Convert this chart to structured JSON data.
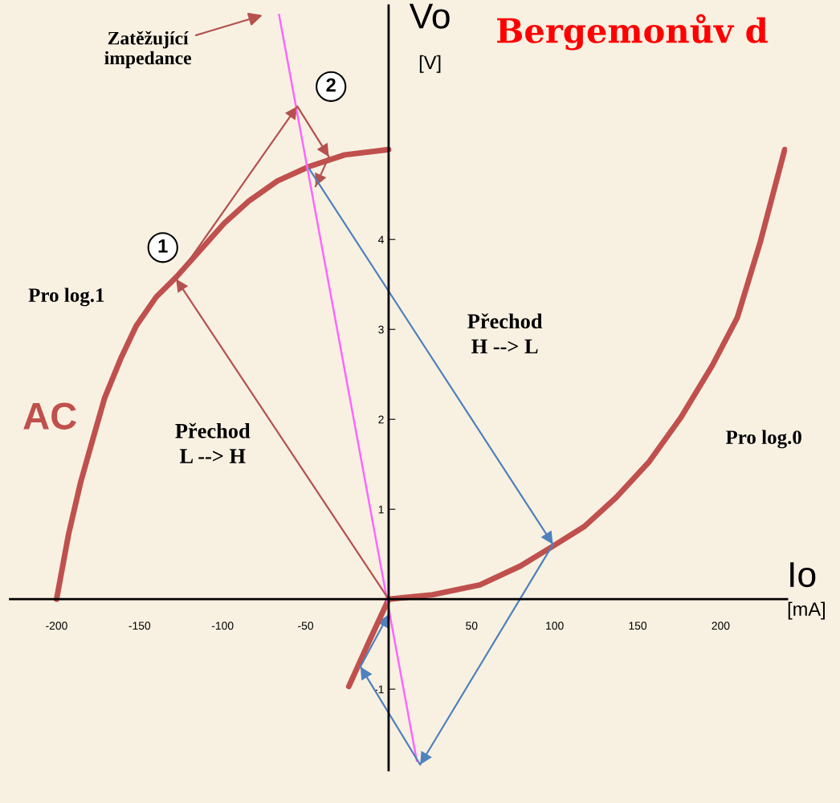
{
  "chart_data": {
    "type": "line",
    "title": "Bergemonův d",
    "xlabel": "Io\n[mA]",
    "ylabel": "Vo\n[V]",
    "xlim": [
      -228,
      240
    ],
    "ylim": [
      -1.9,
      6.6
    ],
    "xticks": [
      -200,
      -150,
      -100,
      -50,
      50,
      100,
      150,
      200
    ],
    "yticks": [
      -1,
      1,
      2,
      3,
      4
    ],
    "grid": false,
    "marker": "none",
    "line_style": "solid",
    "series": [
      {
        "color": "#c0504d",
        "x": [
          -200,
          -192.8,
          -185.5,
          -178,
          -171,
          -161,
          -152,
          -140,
          -128,
          -113,
          -99,
          -84,
          -67,
          -48,
          -26.5,
          0
        ],
        "values": [
          0,
          0.72,
          1.3,
          1.79,
          2.24,
          2.69,
          3.04,
          3.36,
          3.58,
          3.89,
          4.18,
          4.43,
          4.65,
          4.81,
          4.94,
          5.0
        ]
      },
      {
        "color": "#c0504d",
        "x": [
          -24,
          -12,
          0,
          26.5,
          55,
          79.5,
          99,
          118,
          137,
          157,
          176,
          195,
          210,
          224,
          238.6
        ],
        "values": [
          -0.97,
          -0.48,
          0,
          0.05,
          0.16,
          0.37,
          0.59,
          0.81,
          1.13,
          1.53,
          2.02,
          2.6,
          3.13,
          3.98,
          5.0
        ]
      },
      {
        "color": "#ff66ff",
        "x": [
          -66,
          17
        ],
        "values": [
          6.5,
          -1.8
        ]
      },
      {
        "color": "#b5514e",
        "x": [
          0,
          -128,
          -55,
          -36,
          -44
        ],
        "values": [
          0,
          3.56,
          5.48,
          4.92,
          4.59
        ]
      },
      {
        "color": "#4f81bd",
        "x": [
          -48,
          99,
          19,
          -17,
          0
        ],
        "values": [
          4.79,
          0.61,
          -1.84,
          -0.75,
          -0.17
        ]
      }
    ],
    "annotations": [
      "Zatěžující\nimpedance",
      "2",
      "1",
      "Pro log.1",
      "AC",
      "Přechod\nL --> H",
      "Přechod\nH --> L",
      "Pro log.0"
    ]
  }
}
